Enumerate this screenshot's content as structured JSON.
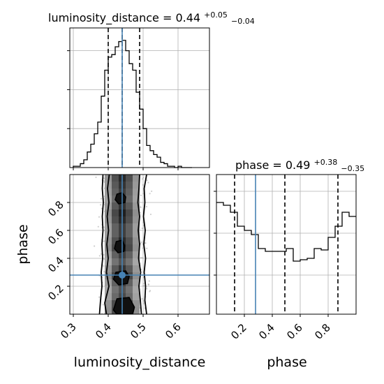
{
  "chart_data": [
    {
      "type": "histogram",
      "parameter": "luminosity_distance",
      "title": {
        "text": "luminosity_distance = 0.44",
        "sup": "+0.05",
        "sub": "−0.04"
      },
      "median": 0.44,
      "quantiles": [
        0.4,
        0.44,
        0.49
      ],
      "truth": 0.44,
      "xlim": [
        0.29,
        0.69
      ],
      "grid": true,
      "hist": {
        "bin_edges": [
          0.3,
          0.31,
          0.32,
          0.33,
          0.34,
          0.35,
          0.36,
          0.37,
          0.38,
          0.39,
          0.4,
          0.41,
          0.42,
          0.43,
          0.44,
          0.45,
          0.46,
          0.47,
          0.48,
          0.49,
          0.5,
          0.51,
          0.52,
          0.53,
          0.54,
          0.55,
          0.56,
          0.57,
          0.58,
          0.59,
          0.6,
          0.61,
          0.62,
          0.63,
          0.64
        ],
        "counts": [
          0.01,
          0.01,
          0.03,
          0.06,
          0.12,
          0.18,
          0.26,
          0.35,
          0.55,
          0.75,
          0.85,
          0.87,
          0.93,
          0.97,
          0.98,
          0.9,
          0.8,
          0.75,
          0.58,
          0.45,
          0.3,
          0.17,
          0.13,
          0.1,
          0.08,
          0.04,
          0.03,
          0.01,
          0.01,
          0.0,
          0.01,
          0.0,
          0.0,
          0.0
        ]
      }
    },
    {
      "type": "histogram",
      "parameter": "phase",
      "title": {
        "text": "phase = 0.49",
        "sup": "+0.38",
        "sub": "−0.35"
      },
      "median": 0.49,
      "quantiles": [
        0.13,
        0.49,
        0.87
      ],
      "truth": 0.28,
      "xlim": [
        0.0,
        1.0
      ],
      "xticks": [
        "0.2",
        "0.4",
        "0.6",
        "0.8"
      ],
      "xlabel": "phase",
      "grid": true,
      "hist": {
        "bin_edges": [
          0.0,
          0.05,
          0.1,
          0.15,
          0.2,
          0.25,
          0.3,
          0.35,
          0.4,
          0.45,
          0.5,
          0.55,
          0.6,
          0.65,
          0.7,
          0.75,
          0.8,
          0.85,
          0.9,
          0.95,
          1.0
        ],
        "counts": [
          0.8,
          0.78,
          0.73,
          0.63,
          0.6,
          0.57,
          0.47,
          0.45,
          0.45,
          0.45,
          0.47,
          0.38,
          0.39,
          0.4,
          0.47,
          0.46,
          0.55,
          0.63,
          0.73,
          0.7
        ]
      }
    },
    {
      "type": "scatter-contour",
      "x_parameter": "luminosity_distance",
      "y_parameter": "phase",
      "xlabel": "luminosity_distance",
      "ylabel": "phase",
      "xlim": [
        0.29,
        0.69
      ],
      "ylim": [
        0.0,
        1.0
      ],
      "xticks": [
        "0.3",
        "0.4",
        "0.5",
        "0.6"
      ],
      "yticks": [
        "0.2",
        "0.4",
        "0.6",
        "0.8"
      ],
      "truth": {
        "x": 0.44,
        "y": 0.28
      },
      "grid": true,
      "density_columns": {
        "x_edges": [
          0.39,
          0.41,
          0.43,
          0.45,
          0.47,
          0.49
        ],
        "weights": [
          0.45,
          0.8,
          1.0,
          0.8,
          0.45
        ]
      },
      "density_rows": [
        0.95,
        0.92,
        0.75,
        0.7,
        0.8,
        0.95,
        0.85,
        0.7,
        0.8,
        0.95,
        0.9,
        0.8,
        0.8,
        0.9,
        0.95,
        0.85,
        0.75,
        0.8,
        0.85,
        0.9
      ],
      "contours": {
        "outer_left": [
          [
            0.375,
            0.0
          ],
          [
            0.378,
            0.1
          ],
          [
            0.382,
            0.2
          ],
          [
            0.38,
            0.3
          ],
          [
            0.384,
            0.4
          ],
          [
            0.382,
            0.5
          ],
          [
            0.385,
            0.6
          ],
          [
            0.383,
            0.7
          ],
          [
            0.386,
            0.8
          ],
          [
            0.383,
            0.9
          ],
          [
            0.385,
            1.0
          ]
        ],
        "outer_right": [
          [
            0.51,
            0.0
          ],
          [
            0.505,
            0.1
          ],
          [
            0.507,
            0.2
          ],
          [
            0.503,
            0.3
          ],
          [
            0.507,
            0.4
          ],
          [
            0.502,
            0.5
          ],
          [
            0.506,
            0.6
          ],
          [
            0.501,
            0.7
          ],
          [
            0.505,
            0.8
          ],
          [
            0.503,
            0.9
          ],
          [
            0.51,
            1.0
          ]
        ],
        "mid_left": [
          [
            0.395,
            0.0
          ],
          [
            0.39,
            0.08
          ],
          [
            0.402,
            0.2
          ],
          [
            0.395,
            0.3
          ],
          [
            0.4,
            0.4
          ],
          [
            0.396,
            0.5
          ],
          [
            0.401,
            0.6
          ],
          [
            0.397,
            0.7
          ],
          [
            0.402,
            0.8
          ],
          [
            0.398,
            0.9
          ],
          [
            0.403,
            1.0
          ]
        ],
        "mid_right": [
          [
            0.495,
            0.0
          ],
          [
            0.492,
            0.1
          ],
          [
            0.488,
            0.2
          ],
          [
            0.493,
            0.3
          ],
          [
            0.487,
            0.4
          ],
          [
            0.49,
            0.5
          ],
          [
            0.486,
            0.6
          ],
          [
            0.49,
            0.7
          ],
          [
            0.485,
            0.8
          ],
          [
            0.488,
            0.9
          ],
          [
            0.49,
            1.0
          ]
        ],
        "inner": [
          [
            [
              0.415,
              0.03
            ],
            [
              0.425,
              0.0
            ],
            [
              0.47,
              0.0
            ],
            [
              0.475,
              0.05
            ],
            [
              0.46,
              0.12
            ],
            [
              0.425,
              0.11
            ],
            [
              0.415,
              0.03
            ]
          ],
          [
            [
              0.415,
              0.25
            ],
            [
              0.43,
              0.21
            ],
            [
              0.455,
              0.22
            ],
            [
              0.46,
              0.27
            ],
            [
              0.45,
              0.31
            ],
            [
              0.422,
              0.3
            ],
            [
              0.415,
              0.25
            ]
          ],
          [
            [
              0.418,
              0.47
            ],
            [
              0.428,
              0.44
            ],
            [
              0.445,
              0.45
            ],
            [
              0.447,
              0.49
            ],
            [
              0.44,
              0.53
            ],
            [
              0.423,
              0.52
            ],
            [
              0.418,
              0.47
            ]
          ],
          [
            [
              0.42,
              0.82
            ],
            [
              0.43,
              0.79
            ],
            [
              0.448,
              0.8
            ],
            [
              0.45,
              0.84
            ],
            [
              0.44,
              0.87
            ],
            [
              0.425,
              0.86
            ],
            [
              0.42,
              0.82
            ]
          ]
        ]
      }
    }
  ]
}
